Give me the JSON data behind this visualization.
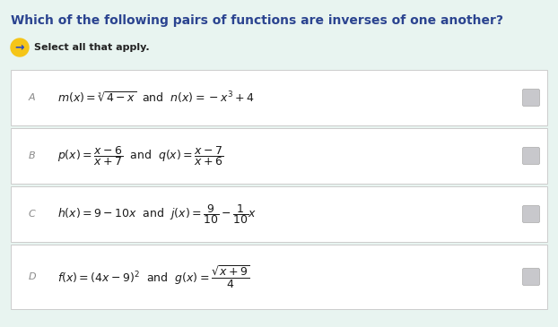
{
  "background_color": "#e8f4f0",
  "title": "Which of the following pairs of functions are inverses of one another?",
  "subtitle": "Select all that apply.",
  "title_color": "#2b4490",
  "subtitle_color": "#222222",
  "box_bg": "#ffffff",
  "box_border": "#cccccc",
  "label_color_A": "#888888",
  "label_color_B": "#888888",
  "label_color_C": "#888888",
  "label_color_D": "#888888",
  "math_color": "#1a1a1a",
  "arrow_circle_color": "#f5c518",
  "arrow_color": "#2244cc",
  "checkbox_color": "#c8c8cc",
  "options": [
    {
      "label": "A",
      "math": "$m(x)=\\sqrt[3]{4-x}$  and  $n(x)=-x^3+4$"
    },
    {
      "label": "B",
      "math": "$p(x)=\\dfrac{x-6}{x+7}$  and  $q(x)=\\dfrac{x-7}{x+6}$"
    },
    {
      "label": "C",
      "math": "$h(x)=9-10x$  and  $j(x)=\\dfrac{9}{10}-\\dfrac{1}{10}x$"
    },
    {
      "label": "D",
      "math": "$f(x)=(4x-9)^2$  and  $g(x)=\\dfrac{\\sqrt{x+9}}{4}$"
    }
  ]
}
